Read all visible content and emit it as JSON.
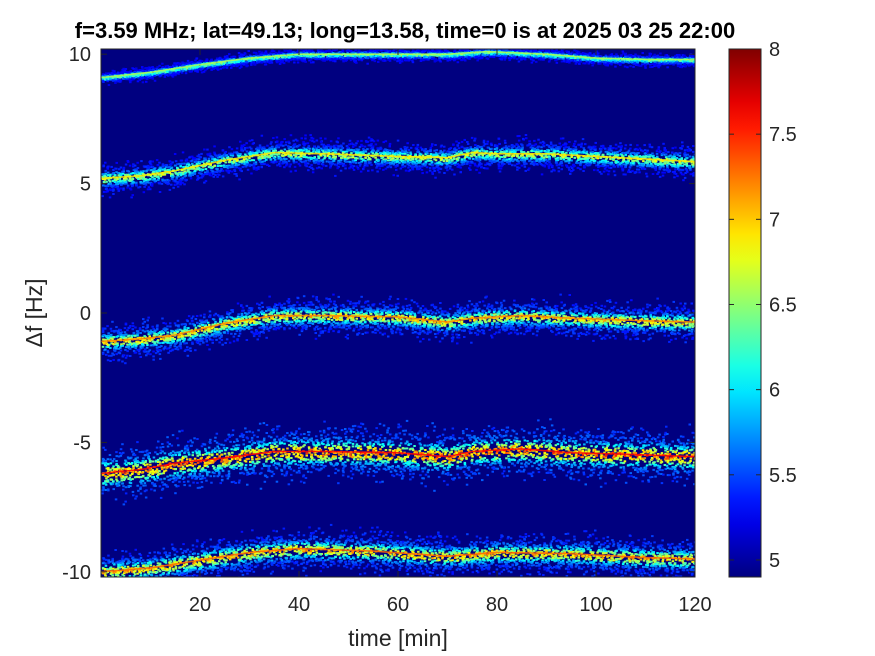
{
  "chart_data": {
    "type": "heatmap",
    "title": "f=3.59 MHz;  lat=49.13; long=13.58, time=0 is at 2025 03 25 22:00",
    "xlabel": "time [min]",
    "ylabel": "Δf [Hz]",
    "xlim": [
      0,
      120
    ],
    "ylim": [
      -10.2,
      10.2
    ],
    "x_ticks": [
      20,
      40,
      60,
      80,
      100,
      120
    ],
    "y_ticks": [
      -10,
      -5,
      0,
      5,
      10
    ],
    "x_tick_labels": [
      "20",
      "40",
      "60",
      "80",
      "100",
      "120"
    ],
    "y_tick_labels": [
      "-10",
      "-5",
      "0",
      "5",
      "10"
    ],
    "background_value": 4.9,
    "colorbar": {
      "colormap": "jet",
      "range": [
        4.9,
        8
      ],
      "ticks": [
        5,
        5.5,
        6,
        6.5,
        7,
        7.5,
        8
      ],
      "tick_labels": [
        "5",
        "5.5",
        "6",
        "6.5",
        "7",
        "7.5",
        "8"
      ]
    },
    "traces": [
      {
        "peak_value": 6.6,
        "spread_hz": 0.15,
        "points": [
          [
            0,
            9.1
          ],
          [
            10,
            9.3
          ],
          [
            20,
            9.6
          ],
          [
            30,
            9.85
          ],
          [
            40,
            10.0
          ],
          [
            55,
            10.0
          ],
          [
            70,
            10.0
          ],
          [
            78,
            10.1
          ],
          [
            90,
            10.0
          ],
          [
            100,
            9.85
          ],
          [
            110,
            9.8
          ],
          [
            120,
            9.8
          ]
        ]
      },
      {
        "peak_value": 6.9,
        "spread_hz": 0.35,
        "points": [
          [
            0,
            5.2
          ],
          [
            8,
            5.3
          ],
          [
            15,
            5.5
          ],
          [
            25,
            5.9
          ],
          [
            35,
            6.2
          ],
          [
            45,
            6.15
          ],
          [
            60,
            6.05
          ],
          [
            70,
            6.0
          ],
          [
            75,
            6.2
          ],
          [
            80,
            6.15
          ],
          [
            90,
            6.15
          ],
          [
            100,
            6.05
          ],
          [
            110,
            5.95
          ],
          [
            120,
            5.85
          ]
        ]
      },
      {
        "peak_value": 7.2,
        "spread_hz": 0.4,
        "points": [
          [
            0,
            -1.1
          ],
          [
            8,
            -1.0
          ],
          [
            15,
            -0.85
          ],
          [
            25,
            -0.4
          ],
          [
            35,
            -0.1
          ],
          [
            45,
            -0.1
          ],
          [
            60,
            -0.15
          ],
          [
            70,
            -0.35
          ],
          [
            75,
            -0.2
          ],
          [
            85,
            -0.1
          ],
          [
            95,
            -0.2
          ],
          [
            110,
            -0.3
          ],
          [
            120,
            -0.35
          ]
        ]
      },
      {
        "peak_value": 7.6,
        "spread_hz": 0.6,
        "points": [
          [
            0,
            -6.2
          ],
          [
            8,
            -6.05
          ],
          [
            15,
            -5.8
          ],
          [
            25,
            -5.6
          ],
          [
            35,
            -5.35
          ],
          [
            45,
            -5.35
          ],
          [
            60,
            -5.4
          ],
          [
            70,
            -5.55
          ],
          [
            75,
            -5.35
          ],
          [
            85,
            -5.25
          ],
          [
            95,
            -5.4
          ],
          [
            105,
            -5.45
          ],
          [
            120,
            -5.55
          ]
        ]
      },
      {
        "peak_value": 7.3,
        "spread_hz": 0.45,
        "points": [
          [
            0,
            -10.0
          ],
          [
            10,
            -9.85
          ],
          [
            20,
            -9.55
          ],
          [
            30,
            -9.25
          ],
          [
            40,
            -9.1
          ],
          [
            55,
            -9.2
          ],
          [
            70,
            -9.4
          ],
          [
            80,
            -9.25
          ],
          [
            95,
            -9.3
          ],
          [
            110,
            -9.45
          ],
          [
            120,
            -9.5
          ]
        ]
      }
    ]
  }
}
